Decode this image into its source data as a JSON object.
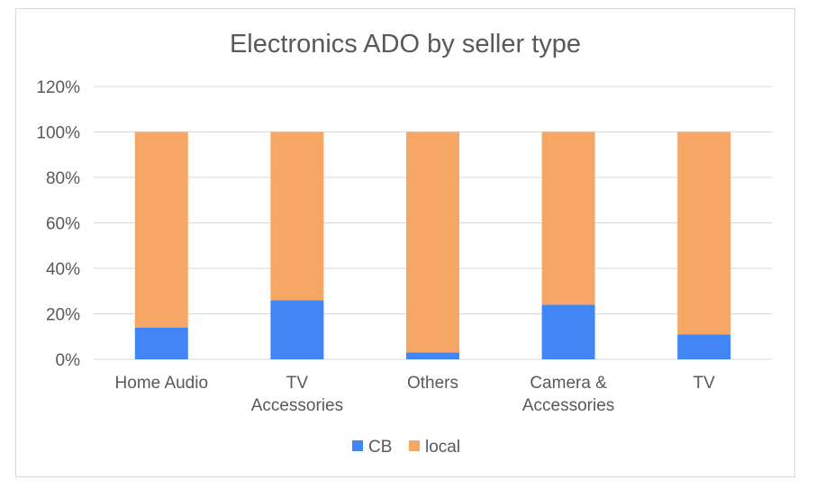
{
  "chart_data": {
    "type": "bar",
    "stacked": true,
    "title": "Electronics ADO by seller type",
    "xlabel": "",
    "ylabel": "",
    "categories": [
      [
        "Home Audio"
      ],
      [
        "TV",
        "Accessories"
      ],
      [
        "Others"
      ],
      [
        "Camera &",
        "Accessories"
      ],
      [
        "TV"
      ]
    ],
    "series": [
      {
        "name": "CB",
        "color": "#4285f4",
        "values": [
          0.14,
          0.26,
          0.03,
          0.24,
          0.11
        ]
      },
      {
        "name": "local",
        "color": "#f6a765",
        "values": [
          0.86,
          0.74,
          0.97,
          0.76,
          0.89
        ]
      }
    ],
    "ylim": [
      0,
      1.2
    ],
    "yticks": [
      {
        "value": 0,
        "label": "0%"
      },
      {
        "value": 0.2,
        "label": "20%"
      },
      {
        "value": 0.4,
        "label": "40%"
      },
      {
        "value": 0.6,
        "label": "60%"
      },
      {
        "value": 0.8,
        "label": "80%"
      },
      {
        "value": 1.0,
        "label": "100%"
      },
      {
        "value": 1.2,
        "label": "120%"
      }
    ],
    "grid": true,
    "legend_position": "bottom"
  }
}
